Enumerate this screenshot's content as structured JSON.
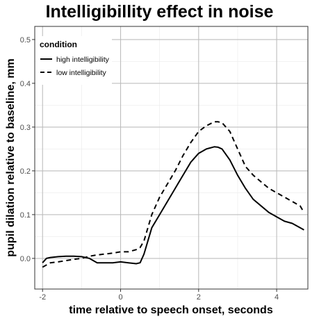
{
  "chart_data": {
    "type": "line",
    "title": "Intelligibillity effect in noise",
    "xlabel": "time relative to speech onset, seconds",
    "ylabel": "pupil dilation relative to baseline, mm",
    "xlim": [
      -2.2,
      4.8
    ],
    "ylim": [
      -0.07,
      0.53
    ],
    "xticks": [
      -2,
      0,
      2,
      4
    ],
    "yticks": [
      0.0,
      0.1,
      0.2,
      0.3,
      0.4,
      0.5
    ],
    "ytick_labels": [
      "0.0",
      "0.1",
      "0.2",
      "0.3",
      "0.4",
      "0.5"
    ],
    "grid": true,
    "legend": {
      "title": "condition",
      "position": "top-left"
    },
    "series": [
      {
        "name": "high intelligibility",
        "linestyle": "solid",
        "color": "#000000",
        "x": [
          -2.0,
          -1.9,
          -1.8,
          -1.6,
          -1.4,
          -1.2,
          -1.0,
          -0.8,
          -0.6,
          -0.4,
          -0.2,
          0.0,
          0.2,
          0.4,
          0.5,
          0.6,
          0.7,
          0.8,
          1.0,
          1.2,
          1.4,
          1.6,
          1.8,
          2.0,
          2.2,
          2.4,
          2.5,
          2.6,
          2.8,
          3.0,
          3.2,
          3.4,
          3.6,
          3.8,
          4.0,
          4.2,
          4.4,
          4.6,
          4.7
        ],
        "y": [
          -0.01,
          0.0,
          0.002,
          0.004,
          0.005,
          0.005,
          0.004,
          0.0,
          -0.01,
          -0.01,
          -0.01,
          -0.008,
          -0.01,
          -0.012,
          -0.01,
          0.01,
          0.04,
          0.07,
          0.1,
          0.13,
          0.16,
          0.19,
          0.22,
          0.24,
          0.25,
          0.255,
          0.254,
          0.25,
          0.225,
          0.19,
          0.16,
          0.135,
          0.12,
          0.105,
          0.095,
          0.085,
          0.08,
          0.07,
          0.065
        ]
      },
      {
        "name": "low intelligibility",
        "linestyle": "dashed",
        "color": "#000000",
        "x": [
          -2.0,
          -1.9,
          -1.8,
          -1.6,
          -1.4,
          -1.2,
          -1.0,
          -0.8,
          -0.6,
          -0.4,
          -0.2,
          0.0,
          0.2,
          0.4,
          0.5,
          0.6,
          0.7,
          0.8,
          1.0,
          1.2,
          1.4,
          1.6,
          1.8,
          2.0,
          2.2,
          2.4,
          2.5,
          2.6,
          2.8,
          3.0,
          3.2,
          3.4,
          3.6,
          3.8,
          4.0,
          4.2,
          4.4,
          4.6,
          4.7
        ],
        "y": [
          -0.02,
          -0.015,
          -0.01,
          -0.008,
          -0.005,
          -0.002,
          0.0,
          0.005,
          0.008,
          0.01,
          0.012,
          0.015,
          0.015,
          0.02,
          0.025,
          0.04,
          0.07,
          0.1,
          0.14,
          0.17,
          0.2,
          0.235,
          0.265,
          0.29,
          0.303,
          0.312,
          0.312,
          0.31,
          0.29,
          0.25,
          0.21,
          0.19,
          0.175,
          0.16,
          0.15,
          0.14,
          0.13,
          0.12,
          0.105
        ]
      }
    ]
  }
}
